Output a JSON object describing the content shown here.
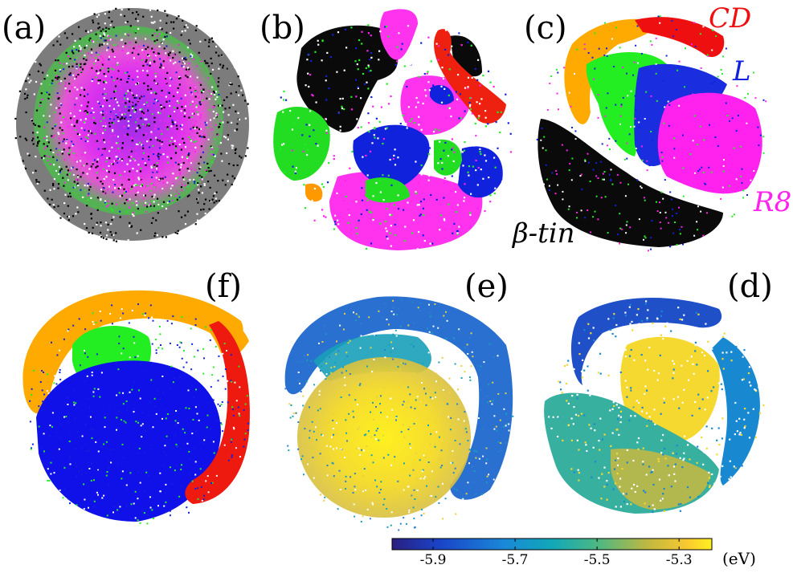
{
  "colors": {
    "beta_tin": "#000000",
    "R8": "#ff22ee",
    "L": "#1020dd",
    "CD": "#ee1010",
    "green": "#22ee22",
    "orange": "#ffaa00",
    "viridis_low": "#2a1f80",
    "viridis_mid": "#11a0b0",
    "viridis_high": "#fff020"
  },
  "chart_data": [
    {
      "panel": "(a)",
      "type": "scatter",
      "phases": [
        "beta_tin",
        "green",
        "orange",
        "R8",
        "L"
      ]
    },
    {
      "panel": "(b)",
      "type": "scatter",
      "phases": [
        "beta_tin",
        "R8",
        "L",
        "green",
        "CD",
        "orange"
      ]
    },
    {
      "panel": "(c)",
      "type": "scatter",
      "annotations": [
        {
          "text": "CD",
          "color": "#ee1010"
        },
        {
          "text": "L",
          "color": "#1020dd"
        },
        {
          "text": "R8",
          "color": "#ff22ee"
        },
        {
          "text": "β-tin",
          "color": "#000000"
        }
      ]
    },
    {
      "panel": "(d)",
      "type": "scatter",
      "colormap": "viridis"
    },
    {
      "panel": "(e)",
      "type": "scatter",
      "colormap": "viridis"
    },
    {
      "panel": "(f)",
      "type": "scatter",
      "phases": [
        "orange",
        "green",
        "L",
        "CD"
      ]
    }
  ],
  "colorbar": {
    "ticks": [
      "-5.9",
      "-5.7",
      "-5.5",
      "-5.3"
    ],
    "tick_values": [
      -5.9,
      -5.7,
      -5.5,
      -5.3
    ],
    "range": [
      -6.0,
      -5.22
    ],
    "unit": "(eV)"
  }
}
